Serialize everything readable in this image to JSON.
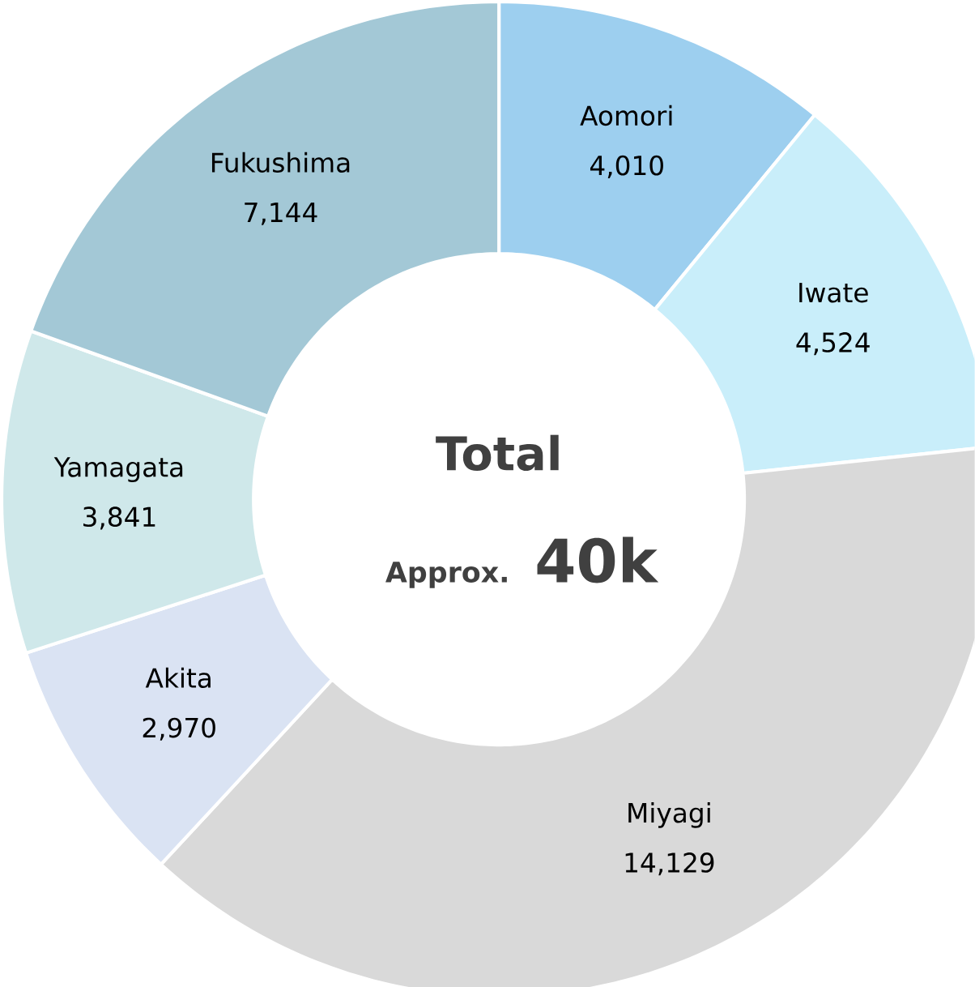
{
  "chart_data": {
    "type": "donut",
    "categories": [
      "Aomori",
      "Iwate",
      "Miyagi",
      "Akita",
      "Yamagata",
      "Fukushima"
    ],
    "values": [
      4010,
      4524,
      14129,
      2970,
      3841,
      7144
    ],
    "value_labels": [
      "4,010",
      "4,524",
      "14,129",
      "2,970",
      "3,841",
      "7,144"
    ],
    "colors": [
      "#9dcfef",
      "#c9eefa",
      "#d9d9d9",
      "#dae3f3",
      "#cfe8ea",
      "#a3c8d6"
    ],
    "annotations": [
      "Total",
      "Approx.",
      "40k"
    ]
  }
}
